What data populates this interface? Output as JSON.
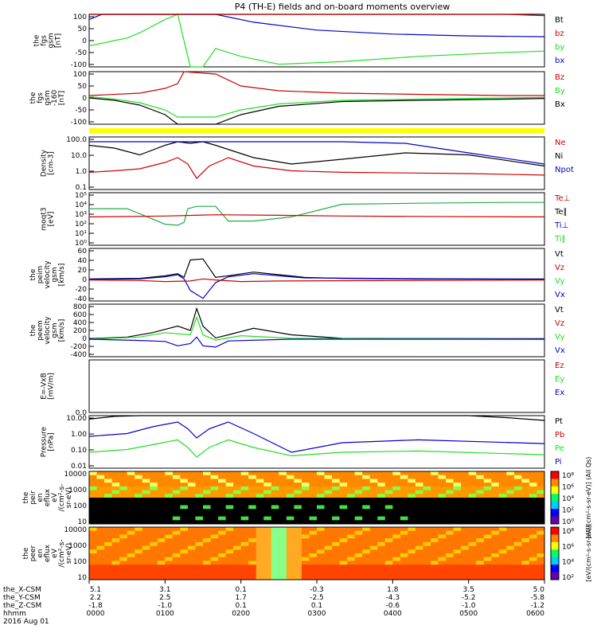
{
  "title": "P4 (TH-E) fields and on-board moments overview",
  "colors": {
    "black": "#000000",
    "red": "#cc0000",
    "green": "#22dd22",
    "blue": "#0000cc",
    "yellow": "#ffff00",
    "cyan": "#00a0a0"
  },
  "chart_data": [
    {
      "id": "fgs",
      "type": "line",
      "ylabel": [
        "the",
        "fgs",
        "gsm",
        "[nT]"
      ],
      "yticks": [
        "100",
        "50",
        "0",
        "-50",
        "-100"
      ],
      "legend": [
        {
          "label": "Bt",
          "color": "#000000"
        },
        {
          "label": "bz",
          "color": "#cc0000"
        },
        {
          "label": "by",
          "color": "#22dd22"
        },
        {
          "label": "bx",
          "color": "#0000cc"
        }
      ],
      "series": [
        {
          "name": "bx",
          "x": [
            0,
            10,
            20,
            30,
            50,
            80,
            100,
            130,
            180,
            240,
            300,
            360
          ],
          "y": [
            80,
            100,
            120,
            140,
            160,
            200,
            120,
            70,
            40,
            25,
            18,
            15
          ]
        },
        {
          "name": "by",
          "x": [
            0,
            10,
            20,
            30,
            40,
            60,
            70,
            80,
            90,
            100,
            120,
            150,
            200,
            260,
            330,
            360
          ],
          "y": [
            -20,
            -10,
            0,
            10,
            30,
            80,
            140,
            -150,
            -130,
            -30,
            -60,
            -90,
            -80,
            -60,
            -45,
            -40
          ]
        },
        {
          "name": "Bt",
          "x": [
            0,
            30,
            60,
            300,
            330,
            360
          ],
          "y": [
            150,
            160,
            180,
            160,
            120,
            100
          ]
        },
        {
          "name": "bz",
          "x": [
            0,
            300,
            330,
            360
          ],
          "y": [
            140,
            150,
            115,
            95
          ]
        }
      ]
    },
    {
      "id": "fgs-gse",
      "type": "line",
      "ylabel": [
        "the",
        "fgs",
        "gsm",
        "-160",
        "[nT]"
      ],
      "yticks": [
        "100",
        "50",
        "0",
        "-50",
        "-100"
      ],
      "legend": [
        {
          "label": "Bz",
          "color": "#cc0000"
        },
        {
          "label": "By",
          "color": "#22dd22"
        },
        {
          "label": "Bx",
          "color": "#000000"
        }
      ],
      "series": [
        {
          "name": "Bz",
          "x": [
            0,
            40,
            60,
            70,
            75,
            100,
            120,
            150,
            200,
            260,
            330,
            360
          ],
          "y": [
            0,
            10,
            30,
            50,
            100,
            90,
            40,
            20,
            10,
            5,
            0,
            0
          ]
        },
        {
          "name": "By",
          "x": [
            0,
            20,
            40,
            60,
            70,
            100,
            120,
            150,
            200,
            260,
            330,
            360
          ],
          "y": [
            -5,
            -15,
            -30,
            -60,
            -90,
            -90,
            -60,
            -35,
            -20,
            -15,
            -10,
            -8
          ]
        },
        {
          "name": "Bx",
          "x": [
            0,
            20,
            40,
            60,
            70,
            100,
            120,
            150,
            200,
            260,
            330,
            360
          ],
          "y": [
            -10,
            -20,
            -40,
            -80,
            -120,
            -120,
            -80,
            -45,
            -25,
            -20,
            -15,
            -12
          ]
        }
      ]
    },
    {
      "id": "density",
      "type": "line",
      "ylog": true,
      "ylabel": [
        "Density",
        "[cm-3]"
      ],
      "yticks": [
        "100.0",
        "10.0",
        "1.0",
        "0.1"
      ],
      "legend": [
        {
          "label": "Ne",
          "color": "#cc0000"
        },
        {
          "label": "Ni",
          "color": "#000000"
        },
        {
          "label": "Npot",
          "color": "#0000cc"
        }
      ],
      "series": [
        {
          "name": "Ne",
          "x": [
            0,
            20,
            40,
            60,
            70,
            78,
            85,
            95,
            110,
            130,
            160,
            200,
            250,
            300,
            360
          ],
          "y": [
            1.2,
            1.5,
            2,
            5,
            10,
            4,
            0.5,
            3,
            10,
            3,
            1.5,
            1.2,
            1.1,
            1,
            0.8
          ]
        },
        {
          "name": "Ni",
          "x": [
            0,
            20,
            40,
            60,
            70,
            80,
            90,
            100,
            130,
            160,
            200,
            250,
            300,
            360
          ],
          "y": [
            60,
            40,
            15,
            60,
            100,
            80,
            100,
            60,
            10,
            4,
            8,
            20,
            15,
            3
          ]
        },
        {
          "name": "Npot",
          "x": [
            0,
            200,
            250,
            300,
            360
          ],
          "y": [
            100,
            100,
            80,
            20,
            4
          ]
        }
      ]
    },
    {
      "id": "temperature",
      "type": "line",
      "ylog": true,
      "ylabel": [
        "moqt3",
        "[eV]"
      ],
      "yticks": [
        "10⁵",
        "10⁴",
        "10³",
        "10²",
        "10¹",
        "10⁰"
      ],
      "legend": [
        {
          "label": "Te⊥",
          "color": "#cc0000"
        },
        {
          "label": "Te∥",
          "color": "#000000"
        },
        {
          "label": "Ti⊥",
          "color": "#0000cc"
        },
        {
          "label": "Ti∥",
          "color": "#22dd22"
        }
      ],
      "series": [
        {
          "name": "Ti",
          "x": [
            0,
            30,
            40,
            60,
            70,
            75,
            78,
            85,
            100,
            110,
            130,
            160,
            200,
            260,
            330,
            360
          ],
          "y": [
            3000,
            3000,
            1000,
            100,
            80,
            150,
            3000,
            5000,
            5000,
            200,
            200,
            500,
            8000,
            10000,
            12000,
            12000
          ]
        },
        {
          "name": "Te",
          "x": [
            0,
            60,
            100,
            150,
            200,
            260,
            360
          ],
          "y": [
            500,
            600,
            800,
            700,
            600,
            550,
            500
          ]
        }
      ]
    },
    {
      "id": "peim-velocity",
      "type": "line",
      "ylabel": [
        "the",
        "peim",
        "velocity",
        "gsm",
        "[km/s]"
      ],
      "yticks": [
        "60",
        "40",
        "20",
        "0",
        "-20",
        "-40"
      ],
      "legend": [
        {
          "label": "Vt",
          "color": "#000000"
        },
        {
          "label": "Vz",
          "color": "#cc0000"
        },
        {
          "label": "Vy",
          "color": "#22dd22"
        },
        {
          "label": "Vx",
          "color": "#0000cc"
        }
      ],
      "series": [
        {
          "name": "Vt",
          "x": [
            0,
            40,
            60,
            70,
            75,
            80,
            90,
            100,
            110,
            130,
            150,
            170,
            200,
            260,
            360
          ],
          "y": [
            2,
            3,
            8,
            12,
            5,
            38,
            40,
            5,
            8,
            15,
            10,
            5,
            3,
            2,
            2
          ]
        },
        {
          "name": "Vx",
          "x": [
            0,
            40,
            60,
            70,
            75,
            80,
            90,
            100,
            110,
            130,
            170,
            360
          ],
          "y": [
            1,
            2,
            6,
            10,
            2,
            -20,
            -35,
            -5,
            6,
            12,
            4,
            1
          ]
        },
        {
          "name": "Vz",
          "x": [
            0,
            40,
            60,
            80,
            90,
            100,
            120,
            150,
            360
          ],
          "y": [
            0,
            -1,
            -3,
            -2,
            2,
            0,
            -3,
            -2,
            0
          ]
        }
      ]
    },
    {
      "id": "peem-velocity",
      "type": "line",
      "ylabel": [
        "the",
        "peem",
        "velocity",
        "gsm",
        "[km/s]"
      ],
      "yticks": [
        "800",
        "600",
        "400",
        "200",
        "0",
        "-200",
        "-400"
      ],
      "legend": [
        {
          "label": "Vt",
          "color": "#000000"
        },
        {
          "label": "Vz",
          "color": "#cc0000"
        },
        {
          "label": "Vy",
          "color": "#22dd22"
        },
        {
          "label": "Vx",
          "color": "#0000cc"
        }
      ],
      "series": [
        {
          "name": "Vt",
          "x": [
            0,
            30,
            50,
            70,
            80,
            85,
            90,
            100,
            110,
            130,
            160,
            200,
            360
          ],
          "y": [
            10,
            50,
            150,
            300,
            200,
            700,
            300,
            30,
            100,
            250,
            100,
            20,
            10
          ]
        },
        {
          "name": "Vy",
          "x": [
            0,
            40,
            60,
            80,
            85,
            90,
            100,
            120,
            160,
            360
          ],
          "y": [
            0,
            50,
            150,
            100,
            500,
            100,
            -20,
            80,
            20,
            0
          ]
        },
        {
          "name": "Vx",
          "x": [
            0,
            40,
            60,
            70,
            80,
            85,
            90,
            100,
            110,
            160,
            360
          ],
          "y": [
            0,
            -30,
            -50,
            -150,
            -100,
            50,
            -150,
            -180,
            -40,
            0,
            0
          ]
        }
      ]
    },
    {
      "id": "efield",
      "type": "line",
      "ylabel": [
        "E=-VxB",
        "[mV/m]"
      ],
      "yticks": [
        "0.0"
      ],
      "legend": [
        {
          "label": "Ez",
          "color": "#cc0000"
        },
        {
          "label": "Ey",
          "color": "#22dd22"
        },
        {
          "label": "Ex",
          "color": "#0000cc"
        }
      ],
      "series": []
    },
    {
      "id": "pressure",
      "type": "line",
      "ylog": true,
      "ylabel": [
        "Pressure",
        "[nPa]"
      ],
      "yticks": [
        "10.00",
        "1.00",
        "0.10",
        "0.01"
      ],
      "legend": [
        {
          "label": "Pt",
          "color": "#000000"
        },
        {
          "label": "Pb",
          "color": "#cc0000"
        },
        {
          "label": "Pe",
          "color": "#22dd22"
        },
        {
          "label": "Pi",
          "color": "#0000cc"
        }
      ],
      "series": [
        {
          "name": "Pt",
          "x": [
            0,
            20,
            40,
            60,
            300,
            330,
            360
          ],
          "y": [
            12,
            18,
            30,
            60,
            40,
            15,
            10
          ]
        },
        {
          "name": "Pi",
          "x": [
            0,
            30,
            50,
            70,
            78,
            85,
            95,
            110,
            130,
            160,
            200,
            260,
            360
          ],
          "y": [
            1,
            1.5,
            4,
            8,
            3,
            0.8,
            3,
            8,
            1.5,
            0.1,
            0.4,
            0.6,
            0.35
          ]
        },
        {
          "name": "Pe",
          "x": [
            0,
            30,
            50,
            70,
            78,
            85,
            95,
            110,
            130,
            160,
            200,
            260,
            360
          ],
          "y": [
            0.1,
            0.15,
            0.3,
            0.6,
            0.2,
            0.05,
            0.2,
            0.6,
            0.2,
            0.06,
            0.1,
            0.12,
            0.07
          ]
        }
      ]
    },
    {
      "id": "peir-spectrogram",
      "type": "heatmap",
      "ylabel": [
        "the",
        "peir",
        "en",
        "eflux",
        "eV",
        "/(cm²-s-",
        "sr-eV)"
      ],
      "yticks": [
        "10000",
        "1000",
        "100",
        "10"
      ],
      "colorbar": [
        "10⁸",
        "10⁶",
        "10⁴",
        "10²",
        "10⁰"
      ],
      "colorbar_label": "[eV/(cm²-s-sr-eV)] (All Qs)"
    },
    {
      "id": "peer-spectrogram",
      "type": "heatmap",
      "ylabel": [
        "the",
        "peer",
        "en",
        "eflux",
        "eV",
        "/(cm²-s-",
        "sr-eV)"
      ],
      "yticks": [
        "10000",
        "1000",
        "100",
        "10"
      ],
      "colorbar": [
        "10⁸",
        "10⁶",
        "10⁴",
        "10²"
      ],
      "colorbar_label": "[eV/(cm²-s-sr-eV)]"
    }
  ],
  "xaxis": {
    "xlim": [
      0,
      360
    ],
    "row_labels": [
      "the_X-CSM",
      "the_Y-CSM",
      "the_Z-CSM",
      "hhmm",
      "2016 Aug 01"
    ],
    "columns": [
      {
        "x": 0,
        "vals": [
          "5.1",
          "2.2",
          "-1.8",
          "0000"
        ]
      },
      {
        "x": 60,
        "vals": [
          "3.1",
          "2.5",
          "-1.0",
          "0100"
        ]
      },
      {
        "x": 120,
        "vals": [
          "0.1",
          "1.7",
          "0.1",
          "0200"
        ]
      },
      {
        "x": 180,
        "vals": [
          "-0.3",
          "-2.5",
          "0.1",
          "0300"
        ]
      },
      {
        "x": 240,
        "vals": [
          "1.8",
          "-4.3",
          "-0.6",
          "0400"
        ]
      },
      {
        "x": 300,
        "vals": [
          "3.5",
          "-5.2",
          "-1.0",
          "0500"
        ]
      },
      {
        "x": 360,
        "vals": [
          "5.0",
          "-5.8",
          "-1.2",
          "0600"
        ]
      }
    ]
  }
}
